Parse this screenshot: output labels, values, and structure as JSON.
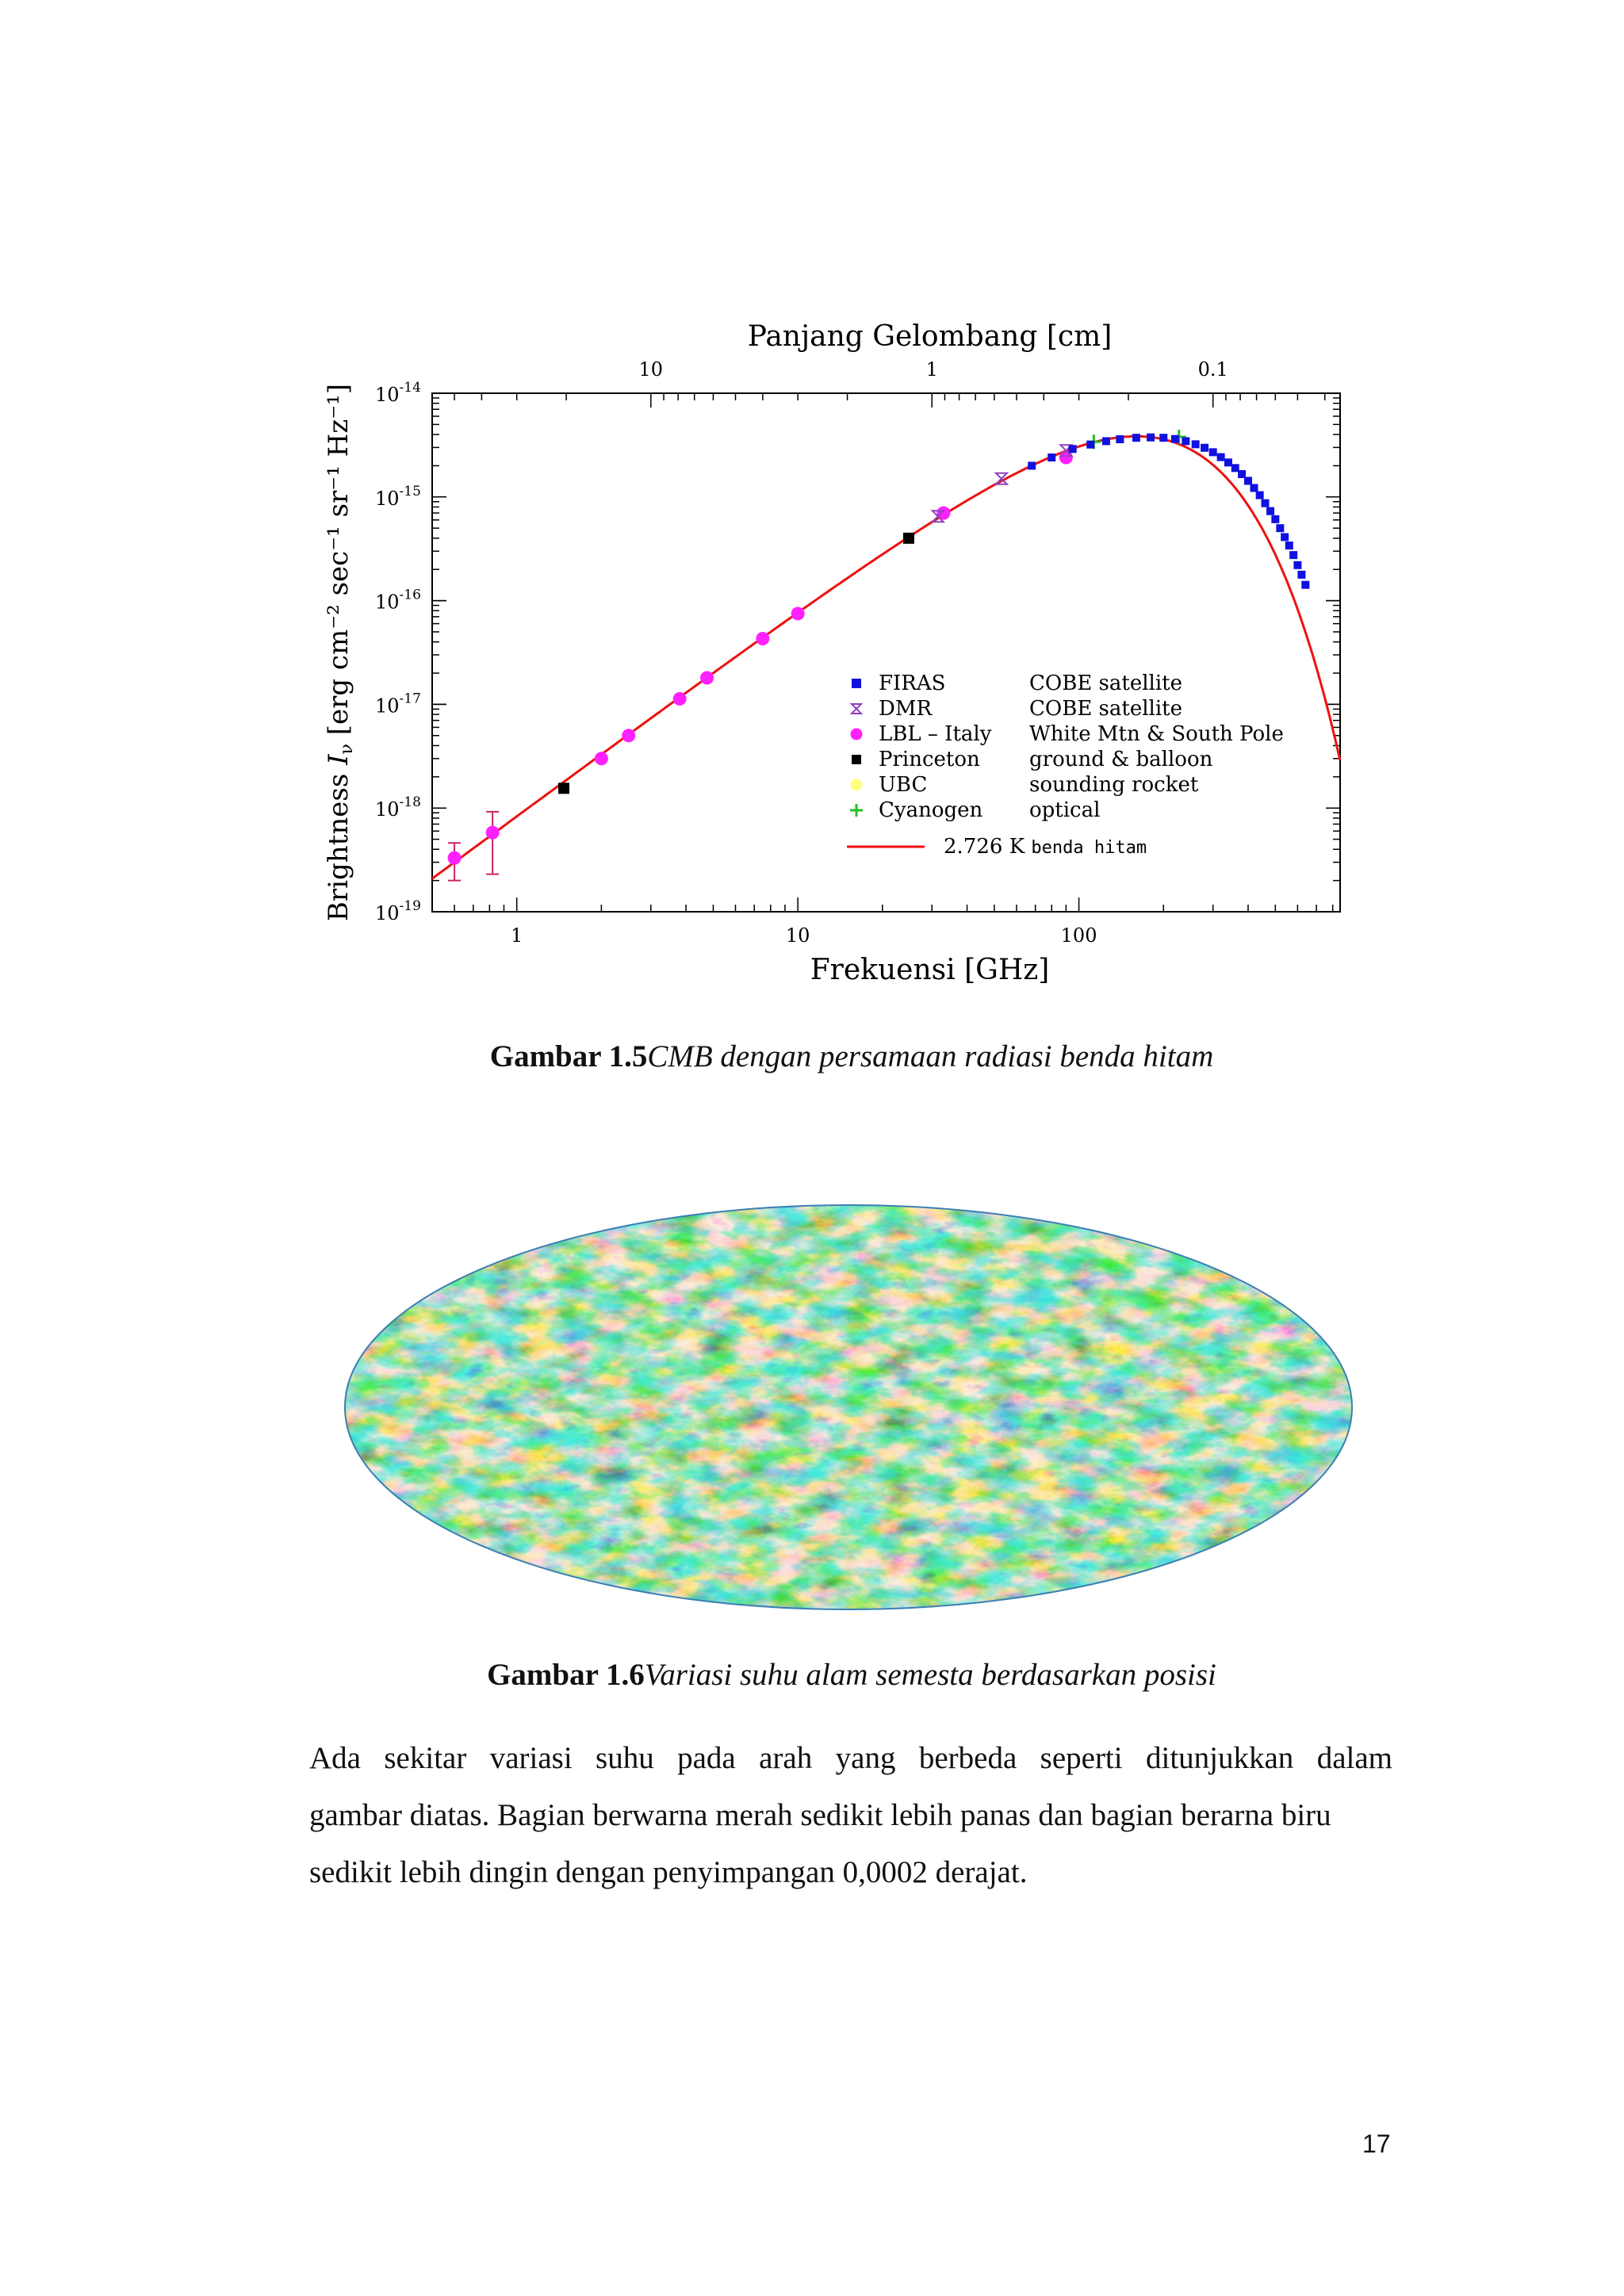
{
  "figure1": {
    "caption_number": "Gambar 1.5",
    "caption_text": "CMB dengan persamaan radiasi benda hitam"
  },
  "figure2": {
    "caption_number": "Gambar 1.6",
    "caption_text": "Variasi suhu alam semesta berdasarkan posisi"
  },
  "paragraph": {
    "line1": "Ada sekitar variasi suhu pada arah yang berbeda seperti ditunjukkan dalam",
    "line2": "gambar diatas. Bagian berwarna merah sedikit lebih panas dan bagian berarna biru",
    "line3": "sedikit lebih dingin dengan penyimpangan 0,0002 derajat."
  },
  "page_number": "17",
  "chart_data": {
    "type": "scatter",
    "xlabel": "Frekuensi [GHz]",
    "x2label": "Panjang Gelombang [cm]",
    "ylabel": "Brightness",
    "ylabel_symbol": "I",
    "ylabel_subscript": "ν",
    "ylabel_units": "[erg cm⁻² sec⁻¹ sr⁻¹ Hz⁻¹]",
    "xscale": "log",
    "yscale": "log",
    "xlim": [
      0.5,
      850
    ],
    "ylim": [
      1e-19,
      1e-14
    ],
    "x_ticks": [
      {
        "v": 1,
        "label": "1"
      },
      {
        "v": 10,
        "label": "10"
      },
      {
        "v": 100,
        "label": "100"
      }
    ],
    "x2_ticks": [
      {
        "v": 3,
        "label": "10"
      },
      {
        "v": 30,
        "label": "1"
      },
      {
        "v": 300,
        "label": "0.1"
      }
    ],
    "y_ticks": [
      {
        "v": 1e-19,
        "base": "10",
        "exp": "-19"
      },
      {
        "v": 1e-18,
        "base": "10",
        "exp": "-18"
      },
      {
        "v": 1e-17,
        "base": "10",
        "exp": "-17"
      },
      {
        "v": 1e-16,
        "base": "10",
        "exp": "-16"
      },
      {
        "v": 1e-15,
        "base": "10",
        "exp": "-15"
      },
      {
        "v": 1e-14,
        "base": "10",
        "exp": "-14"
      }
    ],
    "legend": [
      {
        "name": "FIRAS",
        "source": "COBE satellite",
        "color": "#1010e0",
        "marker": "square"
      },
      {
        "name": "DMR",
        "source": "COBE satellite",
        "color": "#9040c0",
        "marker": "hourglass"
      },
      {
        "name": "LBL – Italy",
        "source": "White Mtn & South Pole",
        "color": "#ff20ff",
        "marker": "circle"
      },
      {
        "name": "Princeton",
        "source": "ground & balloon",
        "color": "#000000",
        "marker": "square"
      },
      {
        "name": "UBC",
        "source": "sounding rocket",
        "color": "#ffff80",
        "marker": "circle"
      },
      {
        "name": "Cyanogen",
        "source": "optical",
        "color": "#20c020",
        "marker": "plus"
      }
    ],
    "curve": {
      "name": "2.726 K",
      "label_suffix": "benda hitam",
      "color": "#ee1111",
      "temperature_K": 2.726
    },
    "series": [
      {
        "name": "LBL – Italy",
        "points": [
          [
            0.6,
            3.3e-19
          ],
          [
            0.82,
            5.8e-19
          ],
          [
            2.0,
            3e-18
          ],
          [
            2.5,
            5e-18
          ],
          [
            3.8,
            1.13e-17
          ],
          [
            4.75,
            1.8e-17
          ],
          [
            7.5,
            4.3e-17
          ],
          [
            10.0,
            7.5e-17
          ],
          [
            33,
            7e-16
          ],
          [
            90,
            2.4e-15
          ]
        ],
        "err": [
          [
            0.6,
            2e-19,
            4.6e-19
          ],
          [
            0.82,
            2.3e-19,
            9.2e-19
          ]
        ]
      },
      {
        "name": "Princeton",
        "points": [
          [
            1.47,
            1.55e-18
          ],
          [
            24.8,
            4e-16
          ]
        ]
      },
      {
        "name": "DMR",
        "points": [
          [
            31.5,
            6.5e-16
          ],
          [
            53,
            1.5e-15
          ],
          [
            90,
            2.8e-15
          ]
        ]
      },
      {
        "name": "Cyanogen",
        "points": [
          [
            113,
            3.4e-15
          ],
          [
            227,
            3.8e-15
          ]
        ]
      },
      {
        "name": "FIRAS",
        "points": [
          [
            68,
            2e-15
          ],
          [
            80,
            2.4e-15
          ],
          [
            95,
            2.9e-15
          ],
          [
            110,
            3.2e-15
          ],
          [
            125,
            3.45e-15
          ],
          [
            140,
            3.6e-15
          ],
          [
            160,
            3.72e-15
          ],
          [
            180,
            3.75e-15
          ],
          [
            200,
            3.72e-15
          ],
          [
            220,
            3.62e-15
          ],
          [
            240,
            3.45e-15
          ],
          [
            260,
            3.22e-15
          ],
          [
            280,
            2.98e-15
          ],
          [
            300,
            2.7e-15
          ],
          [
            320,
            2.42e-15
          ],
          [
            340,
            2.15e-15
          ],
          [
            360,
            1.9e-15
          ],
          [
            380,
            1.66e-15
          ],
          [
            400,
            1.43e-15
          ],
          [
            420,
            1.22e-15
          ],
          [
            440,
            1.04e-15
          ],
          [
            460,
            8.7e-16
          ],
          [
            480,
            7.3e-16
          ],
          [
            500,
            6.1e-16
          ],
          [
            520,
            5e-16
          ],
          [
            540,
            4.1e-16
          ],
          [
            560,
            3.4e-16
          ],
          [
            580,
            2.75e-16
          ],
          [
            600,
            2.2e-16
          ],
          [
            620,
            1.78e-16
          ],
          [
            640,
            1.42e-16
          ]
        ]
      }
    ]
  }
}
